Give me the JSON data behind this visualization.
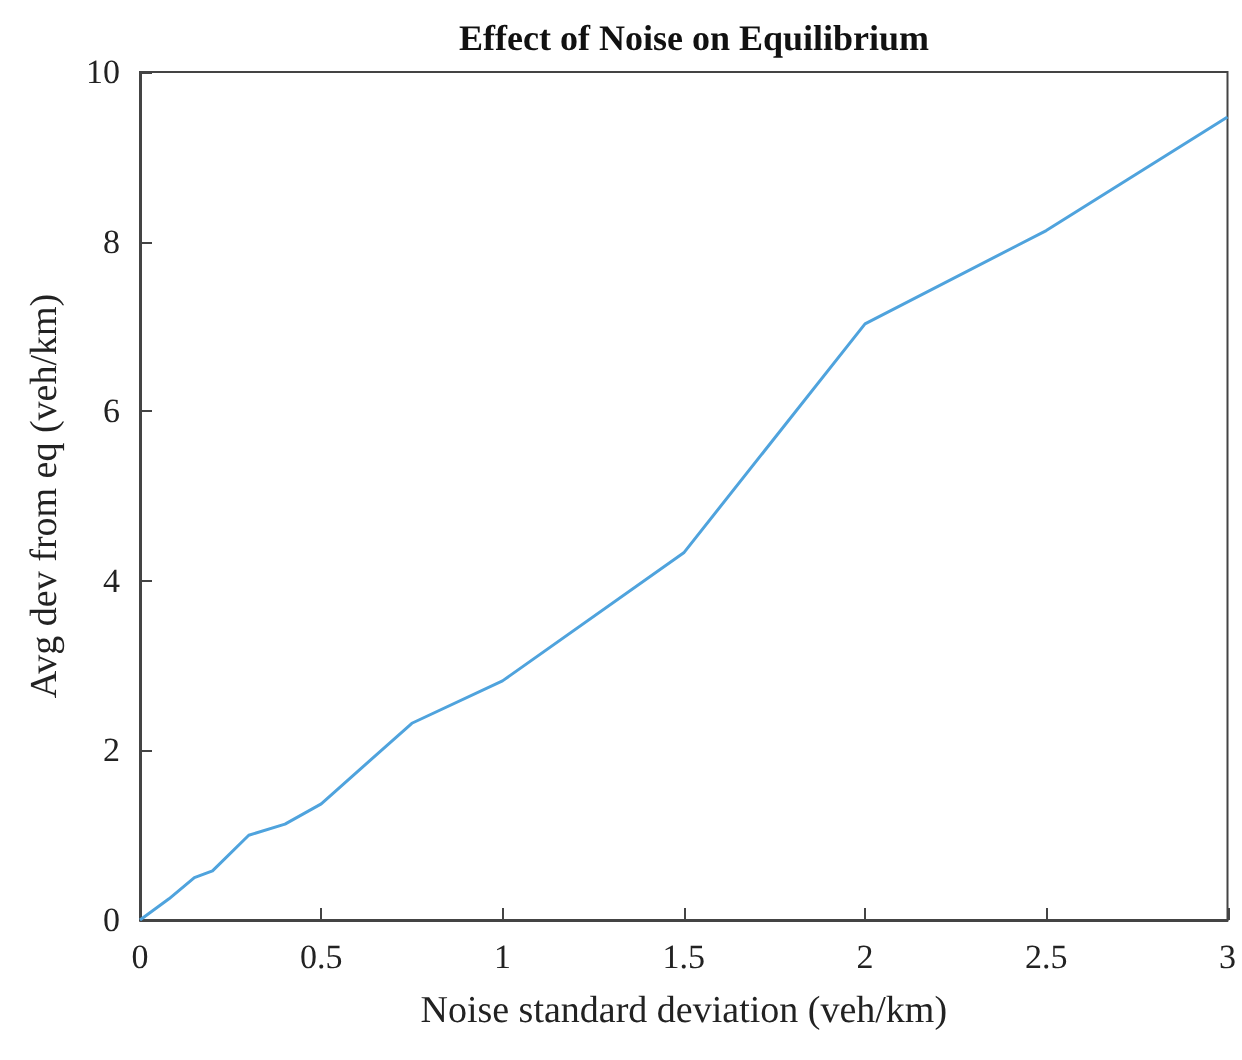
{
  "chart_data": {
    "type": "line",
    "title": "Effect of Noise on Equilibrium",
    "xlabel": "Noise standard deviation (veh/km)",
    "ylabel": "Avg dev from eq (veh/km)",
    "x": [
      0,
      0.08,
      0.15,
      0.2,
      0.3,
      0.4,
      0.5,
      0.75,
      1,
      1.5,
      2,
      2.5,
      3
    ],
    "series": [
      {
        "color": "#4fa3dd",
        "values": [
          0,
          0.25,
          0.5,
          0.58,
          1.0,
          1.13,
          1.37,
          2.32,
          2.82,
          4.33,
          7.03,
          8.13,
          9.47
        ]
      }
    ],
    "xlim": [
      0,
      3
    ],
    "xticks": [
      0,
      0.5,
      1,
      1.5,
      2,
      2.5,
      3
    ],
    "ylim": [
      0,
      10
    ],
    "yticks": [
      0,
      2,
      4,
      6,
      8,
      10
    ],
    "grid": false,
    "marker": "none",
    "line_style": "solid"
  }
}
